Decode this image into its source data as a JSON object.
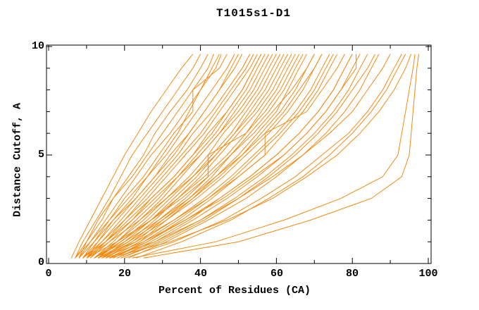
{
  "chart_data": {
    "type": "line",
    "title": "T1015s1-D1",
    "xlabel": "Percent of Residues (CA)",
    "ylabel": "Distance Cutoff, A",
    "xlim": [
      0,
      100
    ],
    "ylim": [
      0,
      10
    ],
    "grid": false,
    "legend_position": "none",
    "x_major_ticks": [
      0,
      20,
      40,
      60,
      80,
      100
    ],
    "x_minor_ticks": [
      10,
      30,
      50,
      70,
      90
    ],
    "y_major_ticks": [
      0,
      5,
      10
    ],
    "y_minor_ticks": [
      1,
      2,
      3,
      4,
      6,
      7,
      8,
      9
    ],
    "x_tick_labels": [
      "0",
      "20",
      "40",
      "60",
      "80",
      "100"
    ],
    "y_tick_labels": [
      "0",
      "5",
      "10"
    ],
    "line_color": "#F28A12",
    "axis_color": "#000000",
    "background_color": "#FFFFFF",
    "sample_levels_y": [
      0.25,
      1,
      2,
      3,
      4,
      5,
      6,
      7,
      8,
      9,
      9.65
    ],
    "curves_x_at_levels": [
      [
        6,
        8,
        11,
        14,
        17,
        20,
        23.5,
        27,
        31,
        35,
        38
      ],
      [
        7,
        9,
        12.5,
        16,
        19,
        22,
        26,
        30,
        34,
        38,
        40
      ],
      [
        7,
        10,
        14,
        17,
        21,
        25,
        28,
        32,
        36.5,
        40,
        42
      ],
      [
        8,
        10,
        13,
        17,
        22,
        26,
        30,
        34,
        38,
        42,
        43.5
      ],
      [
        8,
        11,
        15,
        19,
        23,
        27,
        32,
        36,
        40,
        44,
        45.5
      ],
      [
        9,
        12,
        16,
        20,
        25,
        29,
        33,
        38,
        38,
        45,
        47
      ],
      [
        9,
        13,
        17,
        22,
        26,
        31,
        35,
        39,
        43,
        47,
        49
      ],
      [
        10,
        13,
        18,
        23,
        28,
        32,
        37,
        41,
        45,
        49,
        51
      ],
      [
        10,
        14,
        19,
        24,
        29,
        34,
        38,
        43,
        47,
        51,
        53
      ],
      [
        11,
        15,
        20,
        25,
        30,
        35,
        40,
        44,
        48,
        52,
        54
      ],
      [
        9,
        14,
        20,
        26,
        31,
        36,
        41,
        45,
        49,
        53,
        55
      ],
      [
        11,
        16,
        22,
        27,
        33,
        38,
        42,
        47,
        51,
        54,
        56
      ],
      [
        12,
        17,
        23,
        29,
        34,
        39,
        44,
        48,
        52,
        55,
        57
      ],
      [
        12,
        18,
        24,
        30,
        35,
        40,
        45,
        49,
        53,
        56,
        58
      ],
      [
        13,
        18,
        25,
        31,
        37,
        42,
        46,
        51,
        55,
        58,
        60
      ],
      [
        13,
        19,
        26,
        32,
        38,
        43,
        48,
        52,
        56,
        59,
        61
      ],
      [
        14,
        20,
        27,
        33,
        39,
        44,
        49,
        53,
        57,
        60,
        62
      ],
      [
        14,
        21,
        28,
        34,
        40,
        45,
        50,
        55,
        59,
        62,
        64
      ],
      [
        15,
        22,
        29,
        36,
        42,
        42,
        52,
        56,
        60,
        63,
        65
      ],
      [
        15,
        23,
        30,
        37,
        43,
        48,
        53,
        58,
        62,
        65,
        67
      ],
      [
        16,
        24,
        31,
        38,
        44,
        50,
        55,
        60,
        63,
        66,
        68
      ],
      [
        10,
        18,
        27,
        35,
        42,
        48,
        54,
        59,
        64,
        68,
        70
      ],
      [
        12,
        20,
        29,
        37,
        44,
        51,
        57,
        62,
        66,
        70,
        72
      ],
      [
        16,
        24,
        33,
        41,
        48,
        54,
        60,
        65,
        69,
        72,
        74
      ],
      [
        17,
        26,
        35,
        43,
        50,
        57,
        62,
        67,
        71,
        74,
        76
      ],
      [
        13,
        23,
        33,
        42,
        50,
        57,
        57,
        68,
        72,
        76,
        78
      ],
      [
        18,
        27,
        37,
        45,
        53,
        60,
        66,
        71,
        75,
        78,
        80
      ],
      [
        14,
        25,
        36,
        46,
        54,
        62,
        68,
        73,
        77,
        81,
        81
      ],
      [
        19,
        30,
        41,
        50,
        58,
        65,
        71,
        76,
        80,
        84,
        86
      ],
      [
        15,
        28,
        40,
        50,
        59,
        67,
        74,
        80,
        84,
        88,
        90
      ],
      [
        20,
        33,
        46,
        56,
        65,
        72,
        79,
        84,
        88,
        91,
        93
      ],
      [
        16,
        32,
        47,
        59,
        68,
        76,
        82,
        87,
        91,
        94,
        95.5
      ],
      [
        22,
        44,
        62,
        77,
        88,
        92,
        93,
        94,
        95,
        96,
        96.5
      ],
      [
        25,
        50,
        69,
        85,
        93,
        95,
        95.5,
        96,
        96.5,
        97,
        97.5
      ],
      [
        8,
        12,
        17,
        23,
        28,
        33,
        37,
        41,
        45,
        48,
        50
      ],
      [
        10,
        16,
        24,
        31,
        38,
        44,
        49,
        54,
        58,
        61,
        63
      ],
      [
        12,
        19,
        27,
        34,
        41,
        47,
        52,
        57,
        61,
        64,
        66
      ],
      [
        9,
        15,
        22,
        28,
        34,
        40,
        45,
        50,
        54,
        57,
        59
      ],
      [
        17,
        25,
        34,
        42,
        49,
        55,
        61,
        66,
        70,
        73,
        75
      ],
      [
        21,
        31,
        42,
        52,
        60,
        67,
        73,
        78,
        82,
        85,
        87
      ],
      [
        7,
        11,
        16,
        21,
        26,
        30,
        34,
        37,
        40,
        43,
        45
      ],
      [
        13,
        21,
        30,
        38,
        45,
        51,
        56,
        61,
        65,
        68,
        70
      ],
      [
        18,
        28,
        38,
        47,
        55,
        62,
        68,
        73,
        77,
        80,
        82
      ],
      [
        10,
        15,
        21,
        27,
        33,
        38,
        43,
        47,
        51,
        54,
        56
      ],
      [
        14,
        22,
        31,
        39,
        46,
        52,
        58,
        63,
        67,
        70,
        72
      ],
      [
        16,
        26,
        36,
        45,
        53,
        60,
        66,
        71,
        75,
        78,
        80
      ],
      [
        23,
        35,
        48,
        58,
        67,
        74,
        80,
        85,
        89,
        92,
        94
      ],
      [
        19,
        29,
        40,
        49,
        57,
        64,
        70,
        75,
        79,
        82,
        84
      ]
    ]
  }
}
